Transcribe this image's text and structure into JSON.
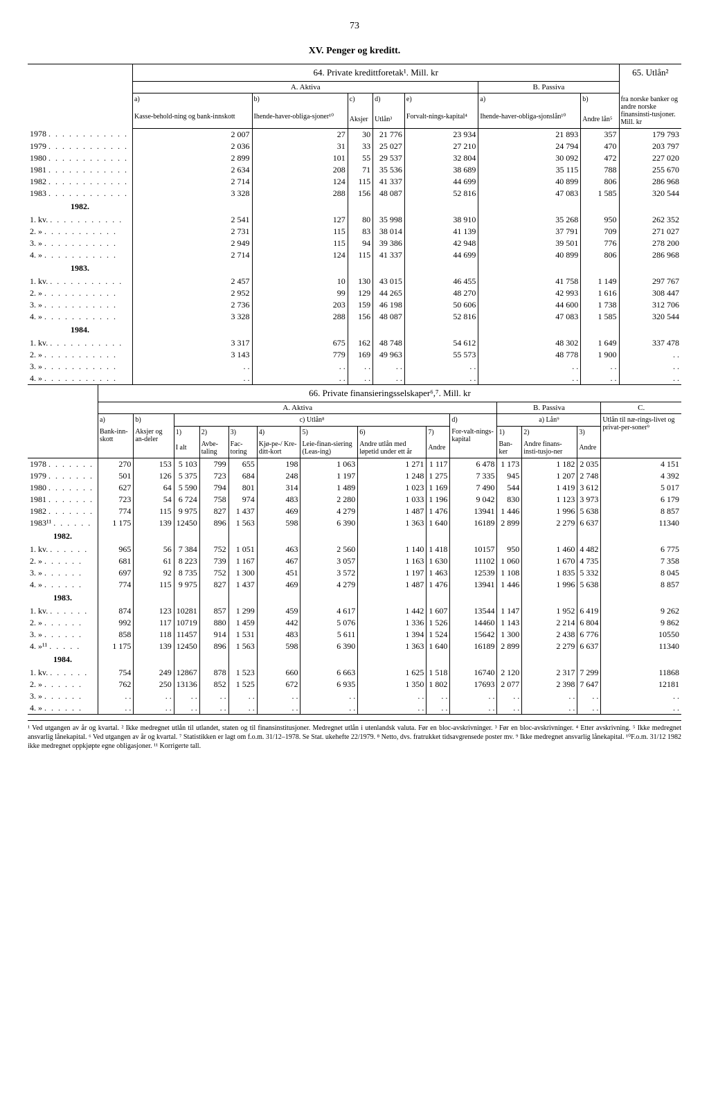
{
  "page_number": "73",
  "section_title": "XV. Penger og kreditt.",
  "table64": {
    "title": "64. Private kredittforetak¹. Mill. kr",
    "right_title": "65. Utlån²",
    "right_subtitle": "fra norske banker og andre norske finansinsti-tusjoner. Mill. kr",
    "aktiva": "A. Aktiva",
    "passiva": "B. Passiva",
    "cols": {
      "a1": "a)",
      "a1_label": "Kasse-behold-ning og bank-innskott",
      "b1": "b)",
      "b1_label": "Ihende-haver-obliga-sjoner¹⁰",
      "c1": "c)",
      "c1_label": "Aksjer",
      "d1": "d)",
      "d1_label": "Utlån³",
      "e1": "e)",
      "e1_label": "Forvalt-nings-kapital⁴",
      "pa": "a)",
      "pa_label": "Ihende-haver-obliga-sjonslån¹⁰",
      "pb": "b)",
      "pb_label": "Andre lån⁵"
    },
    "rows": [
      {
        "label": "1978",
        "dots": ". . . . . . . . . . . .",
        "a": "2 007",
        "b": "27",
        "c": "30",
        "d": "21 776",
        "e": "23 934",
        "pa": "21 893",
        "pb": "357",
        "r": "179 793"
      },
      {
        "label": "1979",
        "dots": ". . . . . . . . . . . .",
        "a": "2 036",
        "b": "31",
        "c": "33",
        "d": "25 027",
        "e": "27 210",
        "pa": "24 794",
        "pb": "470",
        "r": "203 797"
      },
      {
        "label": "1980",
        "dots": ". . . . . . . . . . . .",
        "a": "2 899",
        "b": "101",
        "c": "55",
        "d": "29 537",
        "e": "32 804",
        "pa": "30 092",
        "pb": "472",
        "r": "227 020"
      },
      {
        "label": "1981",
        "dots": ". . . . . . . . . . . .",
        "a": "2 634",
        "b": "208",
        "c": "71",
        "d": "35 536",
        "e": "38 689",
        "pa": "35 115",
        "pb": "788",
        "r": "255 670"
      },
      {
        "label": "1982",
        "dots": ". . . . . . . . . . . .",
        "a": "2 714",
        "b": "124",
        "c": "115",
        "d": "41 337",
        "e": "44 699",
        "pa": "40 899",
        "pb": "806",
        "r": "286 968"
      },
      {
        "label": "1983",
        "dots": ". . . . . . . . . . . .",
        "a": "3 328",
        "b": "288",
        "c": "156",
        "d": "48 087",
        "e": "52 816",
        "pa": "47 083",
        "pb": "1 585",
        "r": "320 544"
      }
    ],
    "year_groups": [
      {
        "year": "1982.",
        "rows": [
          {
            "label": "1. kv.",
            "dots": ". . . . . . . . . . .",
            "a": "2 541",
            "b": "127",
            "c": "80",
            "d": "35 998",
            "e": "38 910",
            "pa": "35 268",
            "pb": "950",
            "r": "262 352"
          },
          {
            "label": "2.  »",
            "dots": ". . . . . . . . . . .",
            "a": "2 731",
            "b": "115",
            "c": "83",
            "d": "38 014",
            "e": "41 139",
            "pa": "37 791",
            "pb": "709",
            "r": "271 027"
          },
          {
            "label": "3.  »",
            "dots": ". . . . . . . . . . .",
            "a": "2 949",
            "b": "115",
            "c": "94",
            "d": "39 386",
            "e": "42 948",
            "pa": "39 501",
            "pb": "776",
            "r": "278 200"
          },
          {
            "label": "4.  »",
            "dots": ". . . . . . . . . . .",
            "a": "2 714",
            "b": "124",
            "c": "115",
            "d": "41 337",
            "e": "44 699",
            "pa": "40 899",
            "pb": "806",
            "r": "286 968"
          }
        ]
      },
      {
        "year": "1983.",
        "rows": [
          {
            "label": "1. kv.",
            "dots": ". . . . . . . . . . .",
            "a": "2 457",
            "b": "10",
            "c": "130",
            "d": "43 015",
            "e": "46 455",
            "pa": "41 758",
            "pb": "1 149",
            "r": "297 767"
          },
          {
            "label": "2.  »",
            "dots": ". . . . . . . . . . .",
            "a": "2 952",
            "b": "99",
            "c": "129",
            "d": "44 265",
            "e": "48 270",
            "pa": "42 993",
            "pb": "1 616",
            "r": "308 447"
          },
          {
            "label": "3.  »",
            "dots": ". . . . . . . . . . .",
            "a": "2 736",
            "b": "203",
            "c": "159",
            "d": "46 198",
            "e": "50 606",
            "pa": "44 600",
            "pb": "1 738",
            "r": "312 706"
          },
          {
            "label": "4.  »",
            "dots": ". . . . . . . . . . .",
            "a": "3 328",
            "b": "288",
            "c": "156",
            "d": "48 087",
            "e": "52 816",
            "pa": "47 083",
            "pb": "1 585",
            "r": "320 544"
          }
        ]
      },
      {
        "year": "1984.",
        "rows": [
          {
            "label": "1. kv.",
            "dots": ". . . . . . . . . . .",
            "a": "3 317",
            "b": "675",
            "c": "162",
            "d": "48 748",
            "e": "54 612",
            "pa": "48 302",
            "pb": "1 649",
            "r": "337 478"
          },
          {
            "label": "2.  »",
            "dots": ". . . . . . . . . . .",
            "a": "3 143",
            "b": "779",
            "c": "169",
            "d": "49 963",
            "e": "55 573",
            "pa": "48 778",
            "pb": "1 900",
            "r": ". ."
          },
          {
            "label": "3.  »",
            "dots": ". . . . . . . . . . .",
            "a": ". .",
            "b": ". .",
            "c": ". .",
            "d": ". .",
            "e": ". .",
            "pa": ". .",
            "pb": ". .",
            "r": ". ."
          },
          {
            "label": "4.  »",
            "dots": ". . . . . . . . . . .",
            "a": ". .",
            "b": ". .",
            "c": ". .",
            "d": ". .",
            "e": ". .",
            "pa": ". .",
            "pb": ". .",
            "r": ". ."
          }
        ]
      }
    ]
  },
  "table66": {
    "title": "66. Private finansieringsselskaper⁶,⁷. Mill. kr",
    "aktiva": "A. Aktiva",
    "passiva": "B. Passiva",
    "c_label": "C.",
    "cols": {
      "a": "a)",
      "a_label": "Bank-inn-skott",
      "b": "b)",
      "b_label": "Aksjer og an-deler",
      "c": "c) Utlån⁸",
      "c1": "1)",
      "c1_label": "I alt",
      "c2": "2)",
      "c2_label": "Avbe-taling",
      "c3": "3)",
      "c3_label": "Fac-toring",
      "c4": "4)",
      "c4_label": "Kjø-pe-/ Kre-ditt-kort",
      "c5": "5)",
      "c5_label": "Leie-finan-siering (Leas-ing)",
      "c6": "6)",
      "c6_label": "Andre utlån med løpetid under ett år",
      "c7": "7)",
      "c7_label": "Andre",
      "d": "d)",
      "d_label": "For-valt-nings-kapital",
      "p_a": "a) Lån⁹",
      "p1": "1)",
      "p1_label": "Ban-ker",
      "p2": "2)",
      "p2_label": "Andre finans-insti-tusjo-ner",
      "p3": "3)",
      "p3_label": "Andre",
      "cc_label": "Utlån til næ-rings-livet og privat-per-soner⁹"
    },
    "rows": [
      {
        "label": "1978",
        "dots": ". . . . . . .",
        "a": "270",
        "b": "153",
        "c1": "5 103",
        "c2": "799",
        "c3": "655",
        "c4": "198",
        "c5": "1 063",
        "c6": "1 271",
        "c7": "1 117",
        "d": "6 478",
        "p1": "1 173",
        "p2": "1 182",
        "p3": "2 035",
        "cc": "4 151"
      },
      {
        "label": "1979",
        "dots": ". . . . . . .",
        "a": "501",
        "b": "126",
        "c1": "5 375",
        "c2": "723",
        "c3": "684",
        "c4": "248",
        "c5": "1 197",
        "c6": "1 248",
        "c7": "1 275",
        "d": "7 335",
        "p1": "945",
        "p2": "1 207",
        "p3": "2 748",
        "cc": "4 392"
      },
      {
        "label": "1980",
        "dots": ". . . . . . .",
        "a": "627",
        "b": "64",
        "c1": "5 590",
        "c2": "794",
        "c3": "801",
        "c4": "314",
        "c5": "1 489",
        "c6": "1 023",
        "c7": "1 169",
        "d": "7 490",
        "p1": "544",
        "p2": "1 419",
        "p3": "3 612",
        "cc": "5 017"
      },
      {
        "label": "1981",
        "dots": ". . . . . . .",
        "a": "723",
        "b": "54",
        "c1": "6 724",
        "c2": "758",
        "c3": "974",
        "c4": "483",
        "c5": "2 280",
        "c6": "1 033",
        "c7": "1 196",
        "d": "9 042",
        "p1": "830",
        "p2": "1 123",
        "p3": "3 973",
        "cc": "6 179"
      },
      {
        "label": "1982",
        "dots": ". . . . . . .",
        "a": "774",
        "b": "115",
        "c1": "9 975",
        "c2": "827",
        "c3": "1 437",
        "c4": "469",
        "c5": "4 279",
        "c6": "1 487",
        "c7": "1 476",
        "d": "13941",
        "p1": "1 446",
        "p2": "1 996",
        "p3": "5 638",
        "cc": "8 857"
      },
      {
        "label": "1983¹¹",
        "dots": ". . . . . .",
        "a": "1 175",
        "b": "139",
        "c1": "12450",
        "c2": "896",
        "c3": "1 563",
        "c4": "598",
        "c5": "6 390",
        "c6": "1 363",
        "c7": "1 640",
        "d": "16189",
        "p1": "2 899",
        "p2": "2 279",
        "p3": "6 637",
        "cc": "11340"
      }
    ],
    "year_groups": [
      {
        "year": "1982.",
        "rows": [
          {
            "label": "1. kv.",
            "dots": ". . . . . .",
            "a": "965",
            "b": "56",
            "c1": "7 384",
            "c2": "752",
            "c3": "1 051",
            "c4": "463",
            "c5": "2 560",
            "c6": "1 140",
            "c7": "1 418",
            "d": "10157",
            "p1": "950",
            "p2": "1 460",
            "p3": "4 482",
            "cc": "6 775"
          },
          {
            "label": "2.  »",
            "dots": ". . . . . .",
            "a": "681",
            "b": "61",
            "c1": "8 223",
            "c2": "739",
            "c3": "1 167",
            "c4": "467",
            "c5": "3 057",
            "c6": "1 163",
            "c7": "1 630",
            "d": "11102",
            "p1": "1 060",
            "p2": "1 670",
            "p3": "4 735",
            "cc": "7 358"
          },
          {
            "label": "3.  »",
            "dots": ". . . . . .",
            "a": "697",
            "b": "92",
            "c1": "8 735",
            "c2": "752",
            "c3": "1 300",
            "c4": "451",
            "c5": "3 572",
            "c6": "1 197",
            "c7": "1 463",
            "d": "12539",
            "p1": "1 108",
            "p2": "1 835",
            "p3": "5 332",
            "cc": "8 045"
          },
          {
            "label": "4.  »",
            "dots": ". . . . . .",
            "a": "774",
            "b": "115",
            "c1": "9 975",
            "c2": "827",
            "c3": "1 437",
            "c4": "469",
            "c5": "4 279",
            "c6": "1 487",
            "c7": "1 476",
            "d": "13941",
            "p1": "1 446",
            "p2": "1 996",
            "p3": "5 638",
            "cc": "8 857"
          }
        ]
      },
      {
        "year": "1983.",
        "rows": [
          {
            "label": "1. kv.",
            "dots": ". . . . . .",
            "a": "874",
            "b": "123",
            "c1": "10281",
            "c2": "857",
            "c3": "1 299",
            "c4": "459",
            "c5": "4 617",
            "c6": "1 442",
            "c7": "1 607",
            "d": "13544",
            "p1": "1 147",
            "p2": "1 952",
            "p3": "6 419",
            "cc": "9 262"
          },
          {
            "label": "2.  »",
            "dots": ". . . . . .",
            "a": "992",
            "b": "117",
            "c1": "10719",
            "c2": "880",
            "c3": "1 459",
            "c4": "442",
            "c5": "5 076",
            "c6": "1 336",
            "c7": "1 526",
            "d": "14460",
            "p1": "1 143",
            "p2": "2 214",
            "p3": "6 804",
            "cc": "9 862"
          },
          {
            "label": "3.  »",
            "dots": ". . . . . .",
            "a": "858",
            "b": "118",
            "c1": "11457",
            "c2": "914",
            "c3": "1 531",
            "c4": "483",
            "c5": "5 611",
            "c6": "1 394",
            "c7": "1 524",
            "d": "15642",
            "p1": "1 300",
            "p2": "2 438",
            "p3": "6 776",
            "cc": "10550"
          },
          {
            "label": "4.  »¹¹",
            "dots": ". . . . .",
            "a": "1 175",
            "b": "139",
            "c1": "12450",
            "c2": "896",
            "c3": "1 563",
            "c4": "598",
            "c5": "6 390",
            "c6": "1 363",
            "c7": "1 640",
            "d": "16189",
            "p1": "2 899",
            "p2": "2 279",
            "p3": "6 637",
            "cc": "11340"
          }
        ]
      },
      {
        "year": "1984.",
        "rows": [
          {
            "label": "1. kv.",
            "dots": ". . . . . .",
            "a": "754",
            "b": "249",
            "c1": "12867",
            "c2": "878",
            "c3": "1 523",
            "c4": "660",
            "c5": "6 663",
            "c6": "1 625",
            "c7": "1 518",
            "d": "16740",
            "p1": "2 120",
            "p2": "2 317",
            "p3": "7 299",
            "cc": "11868"
          },
          {
            "label": "2.  »",
            "dots": ". . . . . .",
            "a": "762",
            "b": "250",
            "c1": "13136",
            "c2": "852",
            "c3": "1 525",
            "c4": "672",
            "c5": "6 935",
            "c6": "1 350",
            "c7": "1 802",
            "d": "17693",
            "p1": "2 077",
            "p2": "2 398",
            "p3": "7 647",
            "cc": "12181"
          },
          {
            "label": "3.  »",
            "dots": ". . . . . .",
            "a": ". .",
            "b": ". .",
            "c1": ". .",
            "c2": ". .",
            "c3": ". .",
            "c4": ". .",
            "c5": ". .",
            "c6": ". .",
            "c7": ". .",
            "d": ". .",
            "p1": ". .",
            "p2": ". .",
            "p3": ". .",
            "cc": ". ."
          },
          {
            "label": "4.  »",
            "dots": ". . . . . .",
            "a": ". .",
            "b": ". .",
            "c1": ". .",
            "c2": ". .",
            "c3": ". .",
            "c4": ". .",
            "c5": ". .",
            "c6": ". .",
            "c7": ". .",
            "d": ". .",
            "p1": ". .",
            "p2": ". .",
            "p3": ". .",
            "cc": ". ."
          }
        ]
      }
    ]
  },
  "footnotes": "¹ Ved utgangen av år og kvartal.  ² Ikke medregnet utlån til utlandet, staten og til finansinstitusjoner. Medregnet utlån i utenlandsk valuta. Før en bloc-avskrivninger.  ³ Før en bloc-avskrivninger.  ⁴ Etter avskrivning.  ⁵ Ikke medregnet ansvarlig lånekapital.  ⁶ Ved utgangen av år og kvartal.  ⁷ Statistikken er lagt om f.o.m. 31/12–1978. Se Stat. ukehefte 22/1979.  ⁸ Netto, dvs. fratrukket tidsavgrensede poster mv.  ⁹ Ikke medregnet ansvarlig lånekapital.  ¹⁰F.o.m. 31/12 1982 ikke medregnet oppkjøpte egne obligasjoner.  ¹¹ Korrigerte tall."
}
